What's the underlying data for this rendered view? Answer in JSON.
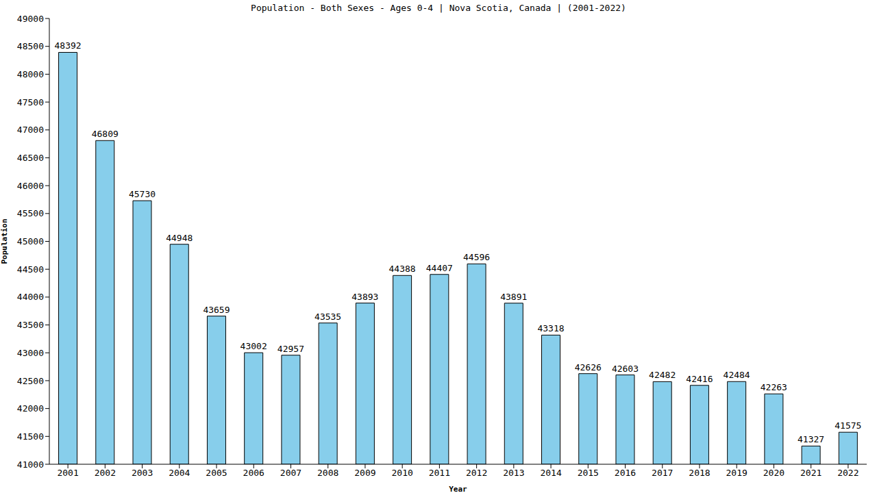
{
  "chart_data": {
    "type": "bar",
    "title": "Population - Both Sexes - Ages 0-4 | Nova Scotia, Canada |  (2001-2022)",
    "x_label": "Year",
    "y_label": "Population",
    "categories": [
      "2001",
      "2002",
      "2003",
      "2004",
      "2005",
      "2006",
      "2007",
      "2008",
      "2009",
      "2010",
      "2011",
      "2012",
      "2013",
      "2014",
      "2015",
      "2016",
      "2017",
      "2018",
      "2019",
      "2020",
      "2021",
      "2022"
    ],
    "values": [
      48392,
      46809,
      45730,
      44948,
      43659,
      43002,
      42957,
      43535,
      43893,
      44388,
      44407,
      44596,
      43891,
      43318,
      42626,
      42603,
      42482,
      42416,
      42484,
      42263,
      41327,
      41575
    ],
    "color": "#87ceeb",
    "ylim": [
      41000,
      49000
    ],
    "yticks": [
      41000,
      41500,
      42000,
      42500,
      43000,
      43500,
      44000,
      44500,
      45000,
      45500,
      46000,
      46500,
      47000,
      47500,
      48000,
      48500,
      49000
    ],
    "grid": false,
    "data_labels": true
  }
}
